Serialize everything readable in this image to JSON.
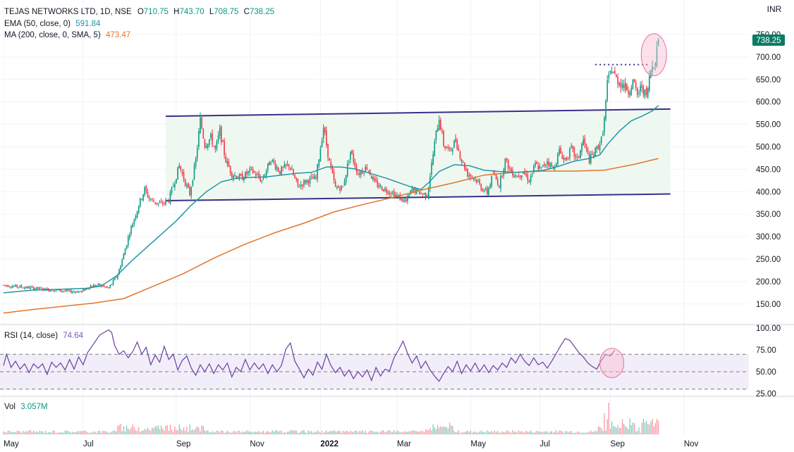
{
  "header": {
    "symbol_line": "TEJAS NETWORKS LTD, 1D, NSE",
    "open_label": "O",
    "open": "710.75",
    "high_label": "H",
    "high": "743.70",
    "low_label": "L",
    "low": "708.75",
    "close_label": "C",
    "close": "738.25",
    "currency": "INR",
    "ema_label": "EMA (50, close, 0)",
    "ema_value": "591.84",
    "ma_label": "MA (200, close, 0, SMA, 5)",
    "ma_value": "473.47",
    "price_tag": "738.25"
  },
  "rsi": {
    "label": "RSI (14, close)",
    "value": "74.64",
    "ticks": [
      "100.00",
      "75.00",
      "50.00",
      "25.00"
    ],
    "levels": [
      70,
      50,
      30
    ],
    "series": [
      {
        "t": 0,
        "v": 57
      },
      {
        "t": 2,
        "v": 70
      },
      {
        "t": 5,
        "v": 55
      },
      {
        "t": 8,
        "v": 62
      },
      {
        "t": 11,
        "v": 53
      },
      {
        "t": 14,
        "v": 59
      },
      {
        "t": 17,
        "v": 49
      },
      {
        "t": 20,
        "v": 59
      },
      {
        "t": 23,
        "v": 54
      },
      {
        "t": 26,
        "v": 59
      },
      {
        "t": 29,
        "v": 47
      },
      {
        "t": 32,
        "v": 61
      },
      {
        "t": 35,
        "v": 55
      },
      {
        "t": 38,
        "v": 60
      },
      {
        "t": 41,
        "v": 52
      },
      {
        "t": 44,
        "v": 64
      },
      {
        "t": 47,
        "v": 53
      },
      {
        "t": 50,
        "v": 67
      },
      {
        "t": 53,
        "v": 58
      },
      {
        "t": 56,
        "v": 72
      },
      {
        "t": 60,
        "v": 82
      },
      {
        "t": 64,
        "v": 92
      },
      {
        "t": 68,
        "v": 96
      },
      {
        "t": 70,
        "v": 98
      },
      {
        "t": 72,
        "v": 95
      },
      {
        "t": 74,
        "v": 80
      },
      {
        "t": 77,
        "v": 70
      },
      {
        "t": 80,
        "v": 74
      },
      {
        "t": 83,
        "v": 66
      },
      {
        "t": 86,
        "v": 73
      },
      {
        "t": 89,
        "v": 84
      },
      {
        "t": 92,
        "v": 70
      },
      {
        "t": 95,
        "v": 78
      },
      {
        "t": 98,
        "v": 58
      },
      {
        "t": 101,
        "v": 69
      },
      {
        "t": 104,
        "v": 61
      },
      {
        "t": 107,
        "v": 79
      },
      {
        "t": 110,
        "v": 64
      },
      {
        "t": 113,
        "v": 70
      },
      {
        "t": 116,
        "v": 52
      },
      {
        "t": 119,
        "v": 63
      },
      {
        "t": 122,
        "v": 68
      },
      {
        "t": 125,
        "v": 54
      },
      {
        "t": 128,
        "v": 46
      },
      {
        "t": 131,
        "v": 58
      },
      {
        "t": 134,
        "v": 50
      },
      {
        "t": 137,
        "v": 59
      },
      {
        "t": 140,
        "v": 48
      },
      {
        "t": 143,
        "v": 58
      },
      {
        "t": 146,
        "v": 52
      },
      {
        "t": 149,
        "v": 60
      },
      {
        "t": 152,
        "v": 44
      },
      {
        "t": 155,
        "v": 55
      },
      {
        "t": 158,
        "v": 50
      },
      {
        "t": 161,
        "v": 64
      },
      {
        "t": 164,
        "v": 52
      },
      {
        "t": 167,
        "v": 60
      },
      {
        "t": 170,
        "v": 53
      },
      {
        "t": 173,
        "v": 59
      },
      {
        "t": 176,
        "v": 48
      },
      {
        "t": 179,
        "v": 58
      },
      {
        "t": 182,
        "v": 50
      },
      {
        "t": 185,
        "v": 57
      },
      {
        "t": 188,
        "v": 76
      },
      {
        "t": 191,
        "v": 83
      },
      {
        "t": 194,
        "v": 62
      },
      {
        "t": 197,
        "v": 53
      },
      {
        "t": 200,
        "v": 43
      },
      {
        "t": 203,
        "v": 53
      },
      {
        "t": 206,
        "v": 46
      },
      {
        "t": 209,
        "v": 61
      },
      {
        "t": 212,
        "v": 53
      },
      {
        "t": 215,
        "v": 70
      },
      {
        "t": 218,
        "v": 57
      },
      {
        "t": 221,
        "v": 49
      },
      {
        "t": 224,
        "v": 55
      },
      {
        "t": 227,
        "v": 45
      },
      {
        "t": 230,
        "v": 52
      },
      {
        "t": 233,
        "v": 42
      },
      {
        "t": 236,
        "v": 50
      },
      {
        "t": 239,
        "v": 44
      },
      {
        "t": 242,
        "v": 52
      },
      {
        "t": 245,
        "v": 40
      },
      {
        "t": 248,
        "v": 55
      },
      {
        "t": 251,
        "v": 45
      },
      {
        "t": 254,
        "v": 53
      },
      {
        "t": 257,
        "v": 51
      },
      {
        "t": 260,
        "v": 66
      },
      {
        "t": 263,
        "v": 75
      },
      {
        "t": 266,
        "v": 85
      },
      {
        "t": 269,
        "v": 71
      },
      {
        "t": 272,
        "v": 60
      },
      {
        "t": 275,
        "v": 68
      },
      {
        "t": 278,
        "v": 54
      },
      {
        "t": 281,
        "v": 62
      },
      {
        "t": 284,
        "v": 52
      },
      {
        "t": 287,
        "v": 45
      },
      {
        "t": 290,
        "v": 39
      },
      {
        "t": 293,
        "v": 48
      },
      {
        "t": 296,
        "v": 56
      },
      {
        "t": 299,
        "v": 50
      },
      {
        "t": 302,
        "v": 62
      },
      {
        "t": 305,
        "v": 48
      },
      {
        "t": 308,
        "v": 58
      },
      {
        "t": 311,
        "v": 51
      },
      {
        "t": 314,
        "v": 60
      },
      {
        "t": 317,
        "v": 50
      },
      {
        "t": 320,
        "v": 58
      },
      {
        "t": 323,
        "v": 49
      },
      {
        "t": 326,
        "v": 57
      },
      {
        "t": 329,
        "v": 52
      },
      {
        "t": 332,
        "v": 60
      },
      {
        "t": 335,
        "v": 55
      },
      {
        "t": 338,
        "v": 66
      },
      {
        "t": 341,
        "v": 60
      },
      {
        "t": 344,
        "v": 70
      },
      {
        "t": 347,
        "v": 62
      },
      {
        "t": 350,
        "v": 57
      },
      {
        "t": 353,
        "v": 66
      },
      {
        "t": 356,
        "v": 58
      },
      {
        "t": 359,
        "v": 61
      },
      {
        "t": 362,
        "v": 54
      },
      {
        "t": 365,
        "v": 62
      },
      {
        "t": 368,
        "v": 71
      },
      {
        "t": 371,
        "v": 80
      },
      {
        "t": 374,
        "v": 88
      },
      {
        "t": 377,
        "v": 86
      },
      {
        "t": 380,
        "v": 79
      },
      {
        "t": 383,
        "v": 72
      },
      {
        "t": 386,
        "v": 67
      },
      {
        "t": 389,
        "v": 60
      },
      {
        "t": 392,
        "v": 56
      },
      {
        "t": 395,
        "v": 53
      },
      {
        "t": 398,
        "v": 63
      },
      {
        "t": 401,
        "v": 70
      },
      {
        "t": 404,
        "v": 68
      },
      {
        "t": 407,
        "v": 74.64
      }
    ]
  },
  "volume": {
    "label": "Vol",
    "value": "3.057M"
  },
  "chart_data": {
    "type": "candlestick",
    "title": "TEJAS NETWORKS LTD, 1D, NSE",
    "yunit": "INR",
    "ylim": [
      115,
      780
    ],
    "y_ticks": [
      "750.00",
      "700.00",
      "650.00",
      "600.00",
      "550.00",
      "500.00",
      "450.00",
      "400.00",
      "350.00",
      "300.00",
      "250.00",
      "200.00",
      "150.00"
    ],
    "x_labels": [
      {
        "t": 0,
        "label": "May"
      },
      {
        "t": 53,
        "label": "Jul"
      },
      {
        "t": 115,
        "label": "Sep"
      },
      {
        "t": 164,
        "label": "Nov"
      },
      {
        "t": 211,
        "label": "2022"
      },
      {
        "t": 262,
        "label": "Mar"
      },
      {
        "t": 311,
        "label": "May"
      },
      {
        "t": 357,
        "label": "Jul"
      },
      {
        "t": 404,
        "label": "Sep"
      },
      {
        "t": 453,
        "label": "Nov"
      }
    ],
    "channel": {
      "start_t": 108,
      "end_t": 444,
      "top_start": 568,
      "top_end": 584,
      "bottom_start": 380,
      "bottom_end": 395
    },
    "breakout_level": {
      "value": 683,
      "start_t": 394,
      "end_t": 430
    },
    "ema50": [
      {
        "t": 0,
        "v": 175
      },
      {
        "t": 20,
        "v": 181
      },
      {
        "t": 40,
        "v": 183
      },
      {
        "t": 55,
        "v": 185
      },
      {
        "t": 65,
        "v": 190
      },
      {
        "t": 75,
        "v": 212
      },
      {
        "t": 85,
        "v": 245
      },
      {
        "t": 95,
        "v": 275
      },
      {
        "t": 105,
        "v": 305
      },
      {
        "t": 115,
        "v": 335
      },
      {
        "t": 125,
        "v": 370
      },
      {
        "t": 135,
        "v": 400
      },
      {
        "t": 145,
        "v": 422
      },
      {
        "t": 155,
        "v": 430
      },
      {
        "t": 165,
        "v": 432
      },
      {
        "t": 175,
        "v": 433
      },
      {
        "t": 185,
        "v": 437
      },
      {
        "t": 195,
        "v": 441
      },
      {
        "t": 205,
        "v": 443
      },
      {
        "t": 215,
        "v": 455
      },
      {
        "t": 225,
        "v": 455
      },
      {
        "t": 235,
        "v": 450
      },
      {
        "t": 245,
        "v": 440
      },
      {
        "t": 255,
        "v": 430
      },
      {
        "t": 265,
        "v": 418
      },
      {
        "t": 272,
        "v": 410
      },
      {
        "t": 278,
        "v": 405
      },
      {
        "t": 283,
        "v": 420
      },
      {
        "t": 290,
        "v": 445
      },
      {
        "t": 300,
        "v": 460
      },
      {
        "t": 310,
        "v": 458
      },
      {
        "t": 320,
        "v": 448
      },
      {
        "t": 330,
        "v": 445
      },
      {
        "t": 340,
        "v": 443
      },
      {
        "t": 350,
        "v": 445
      },
      {
        "t": 360,
        "v": 448
      },
      {
        "t": 370,
        "v": 457
      },
      {
        "t": 380,
        "v": 468
      },
      {
        "t": 390,
        "v": 474
      },
      {
        "t": 397,
        "v": 482
      },
      {
        "t": 402,
        "v": 505
      },
      {
        "t": 410,
        "v": 535
      },
      {
        "t": 418,
        "v": 558
      },
      {
        "t": 425,
        "v": 568
      },
      {
        "t": 432,
        "v": 580
      },
      {
        "t": 436,
        "v": 592
      }
    ],
    "ma200": [
      {
        "t": 0,
        "v": 130
      },
      {
        "t": 20,
        "v": 138
      },
      {
        "t": 40,
        "v": 145
      },
      {
        "t": 60,
        "v": 152
      },
      {
        "t": 80,
        "v": 162
      },
      {
        "t": 100,
        "v": 190
      },
      {
        "t": 120,
        "v": 218
      },
      {
        "t": 140,
        "v": 252
      },
      {
        "t": 160,
        "v": 282
      },
      {
        "t": 180,
        "v": 308
      },
      {
        "t": 200,
        "v": 330
      },
      {
        "t": 220,
        "v": 355
      },
      {
        "t": 240,
        "v": 372
      },
      {
        "t": 260,
        "v": 388
      },
      {
        "t": 280,
        "v": 405
      },
      {
        "t": 300,
        "v": 420
      },
      {
        "t": 320,
        "v": 437
      },
      {
        "t": 340,
        "v": 443
      },
      {
        "t": 360,
        "v": 446
      },
      {
        "t": 380,
        "v": 446
      },
      {
        "t": 400,
        "v": 448
      },
      {
        "t": 420,
        "v": 461
      },
      {
        "t": 436,
        "v": 474
      }
    ],
    "candles_anchor": [
      {
        "t": 0,
        "v": 192
      },
      {
        "t": 15,
        "v": 187
      },
      {
        "t": 30,
        "v": 182
      },
      {
        "t": 45,
        "v": 178
      },
      {
        "t": 52,
        "v": 178
      },
      {
        "t": 58,
        "v": 190
      },
      {
        "t": 64,
        "v": 192
      },
      {
        "t": 70,
        "v": 185
      },
      {
        "t": 76,
        "v": 215
      },
      {
        "t": 80,
        "v": 260
      },
      {
        "t": 84,
        "v": 310
      },
      {
        "t": 88,
        "v": 350
      },
      {
        "t": 91,
        "v": 380
      },
      {
        "t": 94,
        "v": 405
      },
      {
        "t": 97,
        "v": 385
      },
      {
        "t": 100,
        "v": 378
      },
      {
        "t": 105,
        "v": 372
      },
      {
        "t": 110,
        "v": 382
      },
      {
        "t": 114,
        "v": 425
      },
      {
        "t": 117,
        "v": 458
      },
      {
        "t": 121,
        "v": 420
      },
      {
        "t": 124,
        "v": 395
      },
      {
        "t": 128,
        "v": 470
      },
      {
        "t": 131,
        "v": 560
      },
      {
        "t": 134,
        "v": 505
      },
      {
        "t": 138,
        "v": 520
      },
      {
        "t": 141,
        "v": 492
      },
      {
        "t": 144,
        "v": 535
      },
      {
        "t": 148,
        "v": 470
      },
      {
        "t": 152,
        "v": 440
      },
      {
        "t": 158,
        "v": 430
      },
      {
        "t": 165,
        "v": 448
      },
      {
        "t": 172,
        "v": 425
      },
      {
        "t": 178,
        "v": 472
      },
      {
        "t": 184,
        "v": 445
      },
      {
        "t": 190,
        "v": 460
      },
      {
        "t": 196,
        "v": 412
      },
      {
        "t": 202,
        "v": 425
      },
      {
        "t": 208,
        "v": 430
      },
      {
        "t": 213,
        "v": 545
      },
      {
        "t": 217,
        "v": 465
      },
      {
        "t": 221,
        "v": 408
      },
      {
        "t": 226,
        "v": 410
      },
      {
        "t": 231,
        "v": 490
      },
      {
        "t": 236,
        "v": 440
      },
      {
        "t": 242,
        "v": 455
      },
      {
        "t": 247,
        "v": 420
      },
      {
        "t": 252,
        "v": 408
      },
      {
        "t": 258,
        "v": 400
      },
      {
        "t": 264,
        "v": 385
      },
      {
        "t": 268,
        "v": 378
      },
      {
        "t": 272,
        "v": 405
      },
      {
        "t": 277,
        "v": 398
      },
      {
        "t": 282,
        "v": 392
      },
      {
        "t": 285,
        "v": 460
      },
      {
        "t": 288,
        "v": 530
      },
      {
        "t": 290,
        "v": 565
      },
      {
        "t": 293,
        "v": 505
      },
      {
        "t": 297,
        "v": 490
      },
      {
        "t": 301,
        "v": 515
      },
      {
        "t": 305,
        "v": 470
      },
      {
        "t": 309,
        "v": 440
      },
      {
        "t": 314,
        "v": 430
      },
      {
        "t": 318,
        "v": 410
      },
      {
        "t": 322,
        "v": 398
      },
      {
        "t": 326,
        "v": 440
      },
      {
        "t": 330,
        "v": 415
      },
      {
        "t": 334,
        "v": 470
      },
      {
        "t": 338,
        "v": 445
      },
      {
        "t": 342,
        "v": 435
      },
      {
        "t": 346,
        "v": 445
      },
      {
        "t": 350,
        "v": 425
      },
      {
        "t": 354,
        "v": 460
      },
      {
        "t": 358,
        "v": 450
      },
      {
        "t": 362,
        "v": 470
      },
      {
        "t": 366,
        "v": 450
      },
      {
        "t": 370,
        "v": 490
      },
      {
        "t": 374,
        "v": 470
      },
      {
        "t": 378,
        "v": 495
      },
      {
        "t": 382,
        "v": 470
      },
      {
        "t": 386,
        "v": 515
      },
      {
        "t": 390,
        "v": 470
      },
      {
        "t": 394,
        "v": 490
      },
      {
        "t": 398,
        "v": 515
      },
      {
        "t": 400,
        "v": 560
      },
      {
        "t": 402,
        "v": 640
      },
      {
        "t": 405,
        "v": 675
      },
      {
        "t": 408,
        "v": 650
      },
      {
        "t": 412,
        "v": 640
      },
      {
        "t": 416,
        "v": 625
      },
      {
        "t": 419,
        "v": 645
      },
      {
        "t": 422,
        "v": 615
      },
      {
        "t": 425,
        "v": 635
      },
      {
        "t": 428,
        "v": 610
      },
      {
        "t": 431,
        "v": 672
      },
      {
        "t": 434,
        "v": 695
      },
      {
        "t": 436,
        "v": 738.25
      }
    ],
    "highlights": [
      {
        "pane": "price",
        "t": 433,
        "v": 705
      },
      {
        "pane": "rsi",
        "t": 405,
        "v": 60
      }
    ]
  }
}
